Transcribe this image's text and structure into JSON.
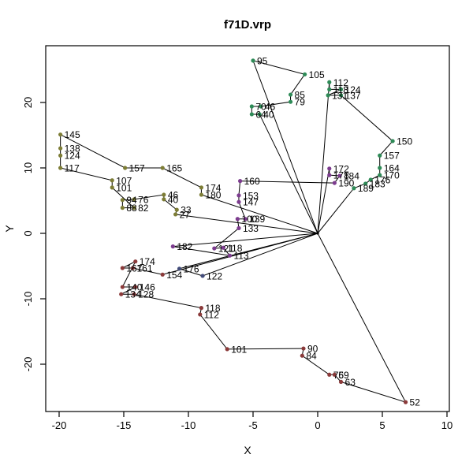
{
  "chart_data": {
    "type": "line",
    "title": "f71D.vrp",
    "xlabel": "X",
    "ylabel": "Y",
    "xlim": [
      -21,
      10.2
    ],
    "ylim": [
      -27,
      28.6
    ],
    "xticks": [
      -20,
      -15,
      -10,
      -5,
      0,
      5,
      10
    ],
    "yticks": [
      -20,
      -10,
      0,
      10,
      20
    ],
    "grid": false,
    "legend": "none",
    "line_color": "#000000",
    "depot": {
      "x": 0,
      "y": 0
    },
    "routes": [
      {
        "name": "route-green-a",
        "color": "#2e8b57",
        "points": [
          {
            "label": "40",
            "x": -4.5,
            "y": 18.2
          },
          {
            "label": "64",
            "x": -5.1,
            "y": 18.2
          },
          {
            "label": "70",
            "x": -5.1,
            "y": 19.4
          },
          {
            "label": "46",
            "x": -4.4,
            "y": 19.4
          },
          {
            "label": "79",
            "x": -2.1,
            "y": 20.1
          },
          {
            "label": "85",
            "x": -2.1,
            "y": 21.2
          },
          {
            "label": "105",
            "x": -1.0,
            "y": 24.3
          },
          {
            "label": "95",
            "x": -5.0,
            "y": 26.4
          }
        ]
      },
      {
        "name": "route-green-b",
        "color": "#2e8b57",
        "points": [
          {
            "label": "112",
            "x": 0.9,
            "y": 23.1
          },
          {
            "label": "118",
            "x": 0.9,
            "y": 22.0
          },
          {
            "label": "124",
            "x": 1.8,
            "y": 22.0
          },
          {
            "label": "131",
            "x": 0.8,
            "y": 21.1
          },
          {
            "label": "137",
            "x": 1.8,
            "y": 21.1
          },
          {
            "label": "150",
            "x": 5.8,
            "y": 14.1
          },
          {
            "label": "157",
            "x": 4.8,
            "y": 11.9
          },
          {
            "label": "164",
            "x": 4.8,
            "y": 10.0
          },
          {
            "label": "170",
            "x": 4.8,
            "y": 8.9
          },
          {
            "label": "176",
            "x": 4.1,
            "y": 8.2
          },
          {
            "label": "183",
            "x": 3.7,
            "y": 7.6
          },
          {
            "label": "189",
            "x": 2.8,
            "y": 6.9
          }
        ]
      },
      {
        "name": "route-purple",
        "color": "#7d3c8f",
        "points": [
          {
            "label": "182",
            "x": -11.2,
            "y": -2.0
          },
          {
            "label": "113",
            "x": -6.8,
            "y": -3.4
          },
          {
            "label": "118",
            "x": -7.3,
            "y": -2.2
          },
          {
            "label": "121",
            "x": -8.0,
            "y": -2.3
          },
          {
            "label": "133",
            "x": -6.1,
            "y": 0.8
          },
          {
            "label": "100",
            "x": -6.2,
            "y": 2.2
          },
          {
            "label": "139",
            "x": -5.6,
            "y": 2.2
          },
          {
            "label": "147",
            "x": -6.1,
            "y": 4.8
          },
          {
            "label": "153",
            "x": -6.1,
            "y": 5.8
          },
          {
            "label": "160",
            "x": -6.0,
            "y": 8.0
          },
          {
            "label": "190",
            "x": 1.3,
            "y": 7.7
          },
          {
            "label": "184",
            "x": 1.7,
            "y": 8.8
          },
          {
            "label": "178",
            "x": 0.9,
            "y": 8.9
          },
          {
            "label": "172",
            "x": 0.9,
            "y": 9.9
          }
        ]
      },
      {
        "name": "route-navy",
        "color": "#424c7a",
        "points": [
          {
            "label": "176",
            "x": -10.7,
            "y": -5.4
          },
          {
            "label": "122",
            "x": -8.9,
            "y": -6.5
          }
        ]
      },
      {
        "name": "route-olive",
        "color": "#7d7d35",
        "points": [
          {
            "label": "27",
            "x": -11.0,
            "y": 2.9
          },
          {
            "label": "33",
            "x": -10.9,
            "y": 3.6
          },
          {
            "label": "40",
            "x": -11.9,
            "y": 5.2
          },
          {
            "label": "46",
            "x": -11.9,
            "y": 5.9
          },
          {
            "label": "76",
            "x": -14.2,
            "y": 5.2
          },
          {
            "label": "94",
            "x": -15.1,
            "y": 5.1
          },
          {
            "label": "88",
            "x": -15.1,
            "y": 3.9
          },
          {
            "label": "82",
            "x": -14.2,
            "y": 3.9
          },
          {
            "label": "101",
            "x": -15.9,
            "y": 7.0
          },
          {
            "label": "107",
            "x": -15.9,
            "y": 8.1
          },
          {
            "label": "117",
            "x": -19.9,
            "y": 10.0
          },
          {
            "label": "124",
            "x": -19.9,
            "y": 11.9
          },
          {
            "label": "138",
            "x": -19.9,
            "y": 13.0
          },
          {
            "label": "145",
            "x": -19.9,
            "y": 15.1
          },
          {
            "label": "157",
            "x": -14.9,
            "y": 10.0
          },
          {
            "label": "165",
            "x": -12.0,
            "y": 10.0
          },
          {
            "label": "174",
            "x": -9.0,
            "y": 7.0
          },
          {
            "label": "180",
            "x": -9.0,
            "y": 5.9
          }
        ]
      },
      {
        "name": "route-darkred",
        "color": "#8b3a3a",
        "points": [
          {
            "label": "154",
            "x": -12.0,
            "y": -6.3
          },
          {
            "label": "161",
            "x": -14.3,
            "y": -5.3
          },
          {
            "label": "167",
            "x": -15.1,
            "y": -5.3
          },
          {
            "label": "174",
            "x": -14.1,
            "y": -4.3
          },
          {
            "label": "140",
            "x": -15.1,
            "y": -8.2
          },
          {
            "label": "146",
            "x": -14.1,
            "y": -8.2
          },
          {
            "label": "134",
            "x": -15.2,
            "y": -9.3
          },
          {
            "label": "128",
            "x": -14.2,
            "y": -9.3
          },
          {
            "label": "118",
            "x": -9.0,
            "y": -11.4
          },
          {
            "label": "112",
            "x": -9.1,
            "y": -12.4
          },
          {
            "label": "101",
            "x": -7.0,
            "y": -17.7
          },
          {
            "label": "90",
            "x": -1.1,
            "y": -17.6
          },
          {
            "label": "84",
            "x": -1.2,
            "y": -18.7
          },
          {
            "label": "75",
            "x": 0.9,
            "y": -21.6
          },
          {
            "label": "69",
            "x": 1.3,
            "y": -21.6
          },
          {
            "label": "63",
            "x": 1.8,
            "y": -22.7
          },
          {
            "label": "52",
            "x": 6.8,
            "y": -25.8
          }
        ]
      }
    ]
  }
}
